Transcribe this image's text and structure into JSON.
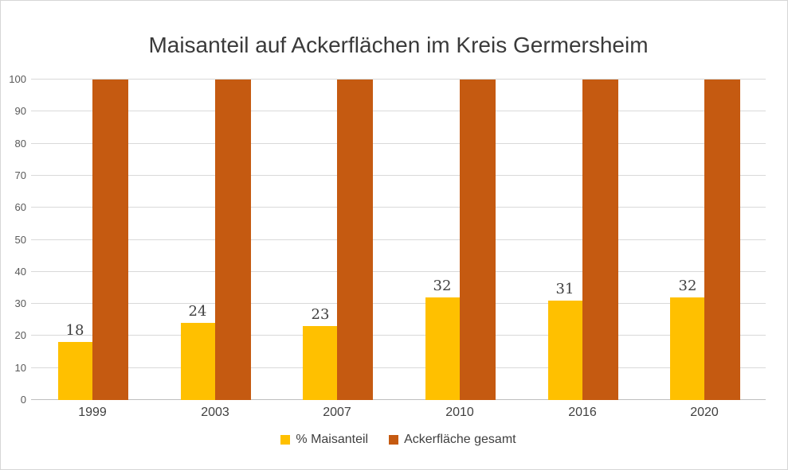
{
  "chart_data": {
    "type": "bar",
    "title": "Maisanteil auf Ackerflächen im Kreis Germersheim",
    "categories": [
      "1999",
      "2003",
      "2007",
      "2010",
      "2016",
      "2020"
    ],
    "series": [
      {
        "name": "% Maisanteil",
        "color": "#FFC000",
        "values": [
          18,
          24,
          23,
          32,
          31,
          32
        ],
        "data_labels": true
      },
      {
        "name": "Ackerfläche gesamt",
        "color": "#C55A11",
        "values": [
          100,
          100,
          100,
          100,
          100,
          100
        ],
        "data_labels": false
      }
    ],
    "xlabel": "",
    "ylabel": "",
    "ylim": [
      0,
      100
    ],
    "ytick_step": 10,
    "yticks": [
      "0",
      "10",
      "20",
      "30",
      "40",
      "50",
      "60",
      "70",
      "80",
      "90",
      "100"
    ],
    "grid": true,
    "gridline_color": "#D9D9D9",
    "axis_line_color": "#BFBFBF",
    "tick_label_color": "#595959",
    "label_color": "#404040",
    "legend_position": "bottom"
  }
}
